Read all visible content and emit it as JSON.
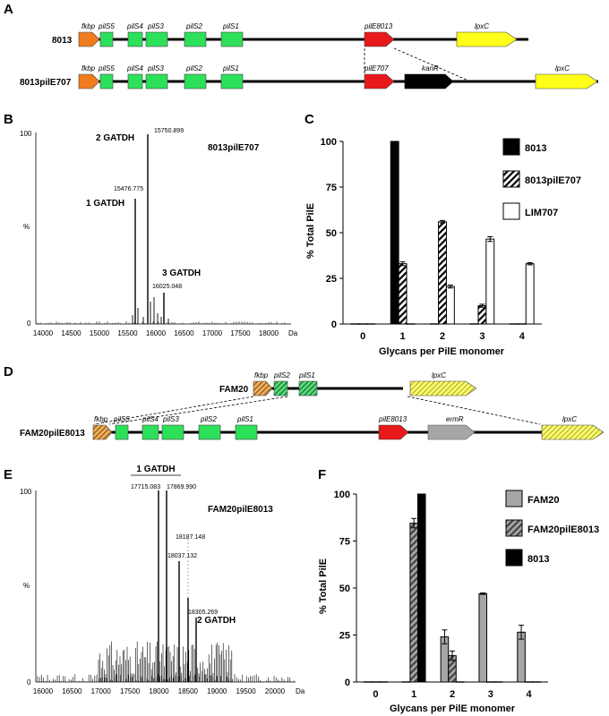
{
  "panels": {
    "A": "A",
    "B": "B",
    "C": "C",
    "D": "D",
    "E": "E",
    "F": "F"
  },
  "colors": {
    "fkbp": "#f07c1e",
    "pil": "#2de05a",
    "red": "#e8191b",
    "black": "#000000",
    "yellow": "#ffff1a",
    "gray": "#a6a6a6",
    "hatch_orange": "#f3b15a",
    "hatch_green": "#56df7a",
    "hatch_yellow": "#ffff6e"
  },
  "panelA": {
    "row1_label": "8013",
    "row2_label": "8013pilE707",
    "genes": {
      "fkbp": "fkbp",
      "pilS5": "pilS5",
      "pilS4": "pilS4",
      "pilS3": "pilS3",
      "pilS2": "pilS2",
      "pilS1": "pilS1",
      "pilE8013": "pilE8013",
      "pilE707": "pilE707",
      "kanR": "kanR",
      "lpxC": "lpxC"
    }
  },
  "panelB": {
    "strain": "8013pilE707",
    "y_top": "100",
    "y_mid": "%",
    "y_bottom": "0",
    "x_unit": "Da",
    "x_ticks": [
      "14000",
      "14500",
      "15000",
      "15500",
      "16000",
      "16500",
      "17000",
      "17500",
      "18000"
    ],
    "peak1_mass": "15476.775",
    "peak2_mass": "15750.899",
    "peak3_mass": "16025.048",
    "ann1": "1 GATDH",
    "ann2": "2 GATDH",
    "ann3": "3 GATDH"
  },
  "panelE": {
    "strain": "FAM20pilE8013",
    "y_top": "100",
    "y_mid": "%",
    "y_bottom": "0",
    "x_unit": "Da",
    "x_ticks": [
      "16000",
      "16500",
      "17000",
      "17500",
      "18000",
      "18500",
      "19000",
      "19500",
      "20000"
    ],
    "peak_a": "17715.083",
    "peak_b": "17869.990",
    "peak_c": "18037.132",
    "peak_d": "18187.148",
    "peak_e": "18305.269",
    "ann1": "1 GATDH",
    "ann2": "2 GATDH"
  },
  "panelD": {
    "row1_label": "FAM20",
    "row2_label": "FAM20pilE8013",
    "genes": {
      "fkbp": "fkbp",
      "pilS2": "pilS2",
      "pilS1": "pilS1",
      "pilS5": "pilS5",
      "pilS4": "pilS4",
      "pilS3": "pilS3",
      "pilE8013": "pilE8013",
      "ermR": "ermR",
      "lpxC": "lpxC"
    }
  },
  "chart_data": [
    {
      "type": "bar",
      "panel": "C",
      "ylabel": "% Total PilE",
      "xlabel": "Glycans per PilE monomer",
      "categories": [
        "0",
        "1",
        "2",
        "3",
        "4"
      ],
      "ylim": [
        0,
        100
      ],
      "y_ticks": [
        "0",
        "25",
        "50",
        "75",
        "100"
      ],
      "legend_position": "top-right",
      "series": [
        {
          "name": "8013",
          "pattern": "solid-black",
          "values": [
            0,
            100,
            0,
            0,
            0
          ],
          "errors": [
            0,
            0,
            0,
            0,
            0
          ]
        },
        {
          "name": "8013pilE707",
          "pattern": "hatched",
          "values": [
            0,
            33,
            56,
            10,
            0
          ],
          "errors": [
            0,
            1,
            0.7,
            0.8,
            0
          ]
        },
        {
          "name": "LIM707",
          "pattern": "white",
          "values": [
            0,
            0,
            20.5,
            46.5,
            33
          ],
          "errors": [
            0,
            0,
            0.8,
            1.3,
            0.6
          ]
        }
      ]
    },
    {
      "type": "bar",
      "panel": "F",
      "ylabel": "% Total PilE",
      "xlabel": "Glycans per PilE monomer",
      "categories": [
        "0",
        "1",
        "2",
        "3",
        "4"
      ],
      "ylim": [
        0,
        100
      ],
      "y_ticks": [
        "0",
        "25",
        "50",
        "75",
        "100"
      ],
      "legend_position": "top-right",
      "series": [
        {
          "name": "FAM20",
          "pattern": "gray",
          "values": [
            0,
            0,
            24,
            47,
            26.5
          ],
          "errors": [
            0,
            0,
            3.7,
            0.4,
            3.7
          ]
        },
        {
          "name": "FAM20pilE8013",
          "pattern": "gray-hatched",
          "values": [
            0,
            84.5,
            14,
            0,
            0
          ],
          "errors": [
            0,
            2.5,
            2.5,
            0,
            0
          ]
        },
        {
          "name": "8013",
          "pattern": "solid-black",
          "values": [
            0,
            100,
            0,
            0,
            0
          ],
          "errors": [
            0,
            0,
            0,
            0,
            0
          ]
        }
      ]
    }
  ]
}
